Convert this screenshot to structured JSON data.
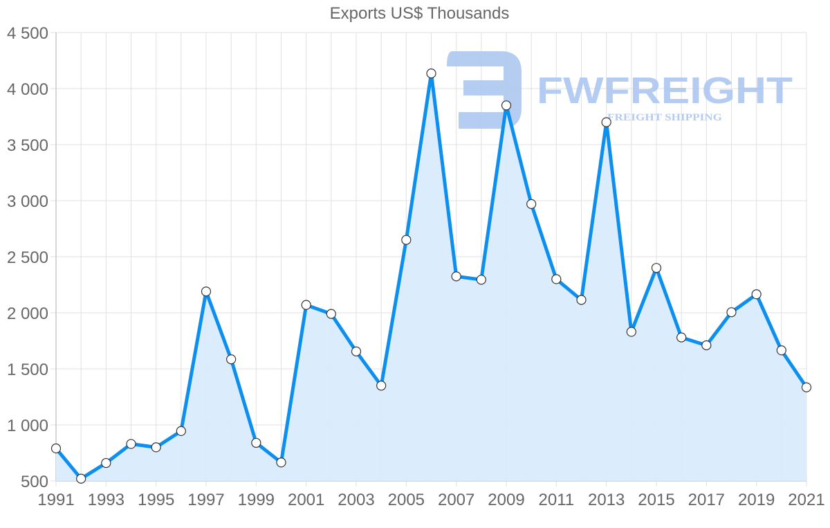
{
  "chart_title": "Exports US$ Thousands",
  "watermark": {
    "brand": "FWFREIGHT",
    "tagline": "FREIGHT SHIPPING",
    "color": "#a9c4f0"
  },
  "colors": {
    "line": "#0d8fef",
    "fill": "#d9ecfc",
    "grid": "#e0e0e0",
    "text": "#666666",
    "point_fill": "#ffffff",
    "point_stroke": "#333333"
  },
  "chart_data": {
    "type": "area",
    "title": "Exports US$ Thousands",
    "xlabel": "",
    "ylabel": "",
    "x": [
      1991,
      1992,
      1993,
      1994,
      1995,
      1996,
      1997,
      1998,
      1999,
      2000,
      2001,
      2002,
      2003,
      2004,
      2005,
      2006,
      2007,
      2008,
      2009,
      2010,
      2011,
      2012,
      2013,
      2014,
      2015,
      2016,
      2017,
      2018,
      2019,
      2020,
      2021
    ],
    "series": [
      {
        "name": "Exports US$ Thousands",
        "values": [
          790,
          520,
          660,
          830,
          800,
          945,
          2190,
          1585,
          840,
          665,
          2070,
          1990,
          1655,
          1350,
          2650,
          4135,
          2325,
          2295,
          3850,
          2970,
          2300,
          2115,
          3700,
          1830,
          2400,
          1780,
          1710,
          2005,
          2165,
          1665,
          1335
        ]
      }
    ],
    "ylim": [
      500,
      4500
    ],
    "xlim": [
      1991,
      2021
    ],
    "y_ticks": [
      500,
      1000,
      1500,
      2000,
      2500,
      3000,
      3500,
      4000,
      4500
    ],
    "y_tick_labels": [
      "500",
      "1 000",
      "1 500",
      "2 000",
      "2 500",
      "3 000",
      "3 500",
      "4 000",
      "4 500"
    ],
    "x_tick_labels": [
      "1991",
      "1993",
      "1995",
      "1997",
      "1999",
      "2001",
      "2003",
      "2005",
      "2007",
      "2009",
      "2011",
      "2013",
      "2015",
      "2017",
      "2019",
      "2021"
    ],
    "grid": true,
    "legend": "none"
  }
}
